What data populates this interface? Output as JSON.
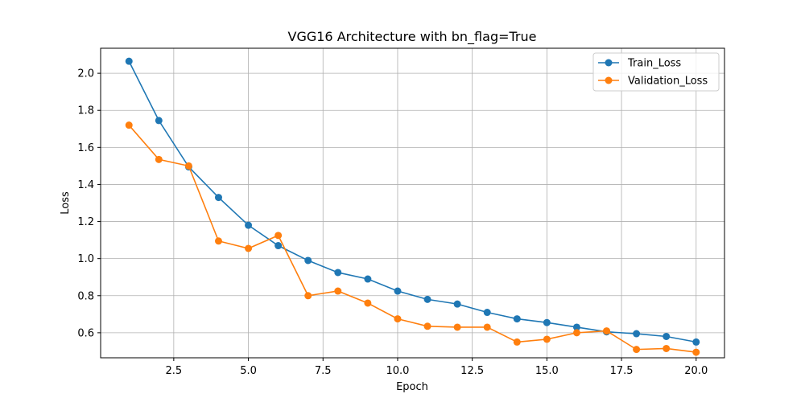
{
  "chart_data": {
    "type": "line",
    "title": "VGG16 Architecture with bn_flag=True",
    "xlabel": "Epoch",
    "ylabel": "Loss",
    "xlim": [
      0.05,
      20.95
    ],
    "ylim": [
      0.465,
      2.135
    ],
    "xticks": [
      2.5,
      5.0,
      7.5,
      10.0,
      12.5,
      15.0,
      17.5,
      20.0
    ],
    "xtick_labels": [
      "2.5",
      "5.0",
      "7.5",
      "10.0",
      "12.5",
      "15.0",
      "17.5",
      "20.0"
    ],
    "yticks": [
      0.6,
      0.8,
      1.0,
      1.2,
      1.4,
      1.6,
      1.8,
      2.0
    ],
    "ytick_labels": [
      "0.6",
      "0.8",
      "1.0",
      "1.2",
      "1.4",
      "1.6",
      "1.8",
      "2.0"
    ],
    "grid": true,
    "legend_position": "top-right",
    "x": [
      1,
      2,
      3,
      4,
      5,
      6,
      7,
      8,
      9,
      10,
      11,
      12,
      13,
      14,
      15,
      16,
      17,
      18,
      19,
      20
    ],
    "series": [
      {
        "name": "Train_Loss",
        "color": "#1f77b4",
        "values": [
          2.065,
          1.745,
          1.495,
          1.33,
          1.18,
          1.07,
          0.99,
          0.925,
          0.89,
          0.825,
          0.78,
          0.755,
          0.71,
          0.675,
          0.655,
          0.63,
          0.605,
          0.595,
          0.58,
          0.55
        ]
      },
      {
        "name": "Validation_Loss",
        "color": "#ff7f0e",
        "values": [
          1.72,
          1.535,
          1.5,
          1.095,
          1.055,
          1.125,
          0.8,
          0.825,
          0.76,
          0.675,
          0.635,
          0.63,
          0.63,
          0.55,
          0.565,
          0.6,
          0.61,
          0.51,
          0.515,
          0.495
        ]
      }
    ]
  }
}
